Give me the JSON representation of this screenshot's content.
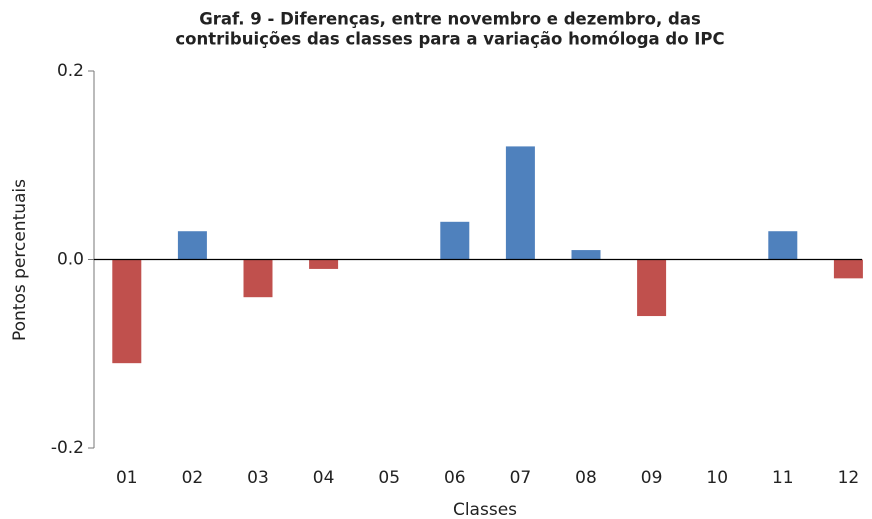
{
  "chart_data": {
    "type": "bar",
    "title": [
      "Graf. 9 - Diferenças, entre novembro e dezembro, das",
      "contribuições das classes para a variação homóloga do IPC"
    ],
    "xlabel": "Classes",
    "ylabel": "Pontos percentuais",
    "categories": [
      "01",
      "02",
      "03",
      "04",
      "05",
      "06",
      "07",
      "08",
      "09",
      "10",
      "11",
      "12"
    ],
    "values": [
      -0.11,
      0.03,
      -0.04,
      -0.01,
      0,
      0.04,
      0.12,
      0.01,
      -0.06,
      0,
      0.03,
      -0.02
    ],
    "positive_color": "#4f81bd",
    "negative_color": "#c0504d",
    "ylim": [
      -0.2,
      0.2
    ],
    "yticks": [
      -0.2,
      {
        "value": 0,
        "label": "0.0"
      },
      0.2
    ],
    "grid": false
  }
}
